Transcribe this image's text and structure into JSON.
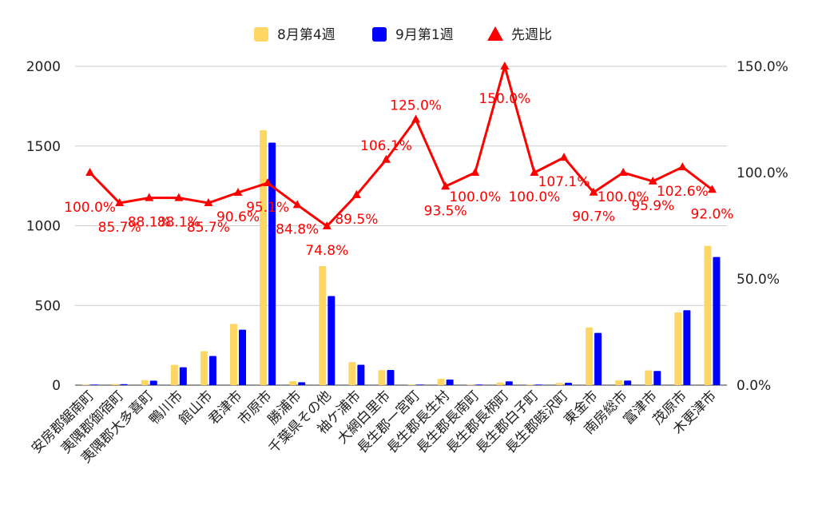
{
  "chart_data": {
    "type": "bar",
    "categories": [
      "安房郡鋸南町",
      "夷隅郡御宿町",
      "夷隅郡大多喜町",
      "鴨川市",
      "館山市",
      "君津市",
      "市原市",
      "勝浦市",
      "千葉県その他",
      "袖ケ浦市",
      "大網白里市",
      "長生郡一宮町",
      "長生郡長生村",
      "長生郡長南町",
      "長生郡長柄町",
      "長生郡白子町",
      "長生郡睦沢町",
      "東金市",
      "南房総市",
      "富津市",
      "茂原市",
      "木更津市"
    ],
    "series": [
      {
        "name": "8月第4週",
        "type": "bar",
        "color": "#fdd663",
        "values": [
          1,
          7,
          32,
          127,
          213,
          384,
          1599,
          25,
          747,
          145,
          94,
          3,
          40,
          2,
          17,
          1,
          14,
          362,
          31,
          93,
          456,
          874
        ]
      },
      {
        "name": "9月第1週",
        "type": "bar",
        "color": "#0000ff",
        "values": [
          1,
          6,
          28,
          112,
          183,
          348,
          1521,
          18,
          559,
          128,
          95,
          3,
          35,
          2,
          24,
          1,
          15,
          328,
          29,
          89,
          470,
          804
        ]
      },
      {
        "name": "先週比",
        "type": "line",
        "color": "#ff0000",
        "axis": "right",
        "values": [
          100.0,
          85.7,
          88.1,
          88.1,
          85.7,
          90.6,
          95.1,
          84.8,
          74.8,
          89.5,
          106.1,
          125.0,
          93.5,
          100.0,
          150.0,
          100.0,
          107.1,
          90.7,
          100.0,
          95.9,
          102.6,
          92.0
        ],
        "labels": [
          "100.0%",
          "85.7%",
          "88.1%",
          "88.1%",
          "85.7%",
          "90.6%",
          "95.1%",
          "84.8%",
          "74.8%",
          "89.5%",
          "106.1%",
          "125.0%",
          "93.5%",
          "100.0%",
          "150.0%",
          "100.0%",
          "107.1%",
          "90.7%",
          "100.0%",
          "95.9%",
          "102.6%",
          "92.0%"
        ]
      }
    ],
    "ylim": [
      0,
      2000
    ],
    "y_ticks": [
      "0",
      "500",
      "1000",
      "1500",
      "2000"
    ],
    "y2lim": [
      0,
      150
    ],
    "y2_ticks": [
      "0.0%",
      "50.0%",
      "100.0%",
      "150.0%"
    ],
    "legend_position": "top",
    "grid": true
  }
}
